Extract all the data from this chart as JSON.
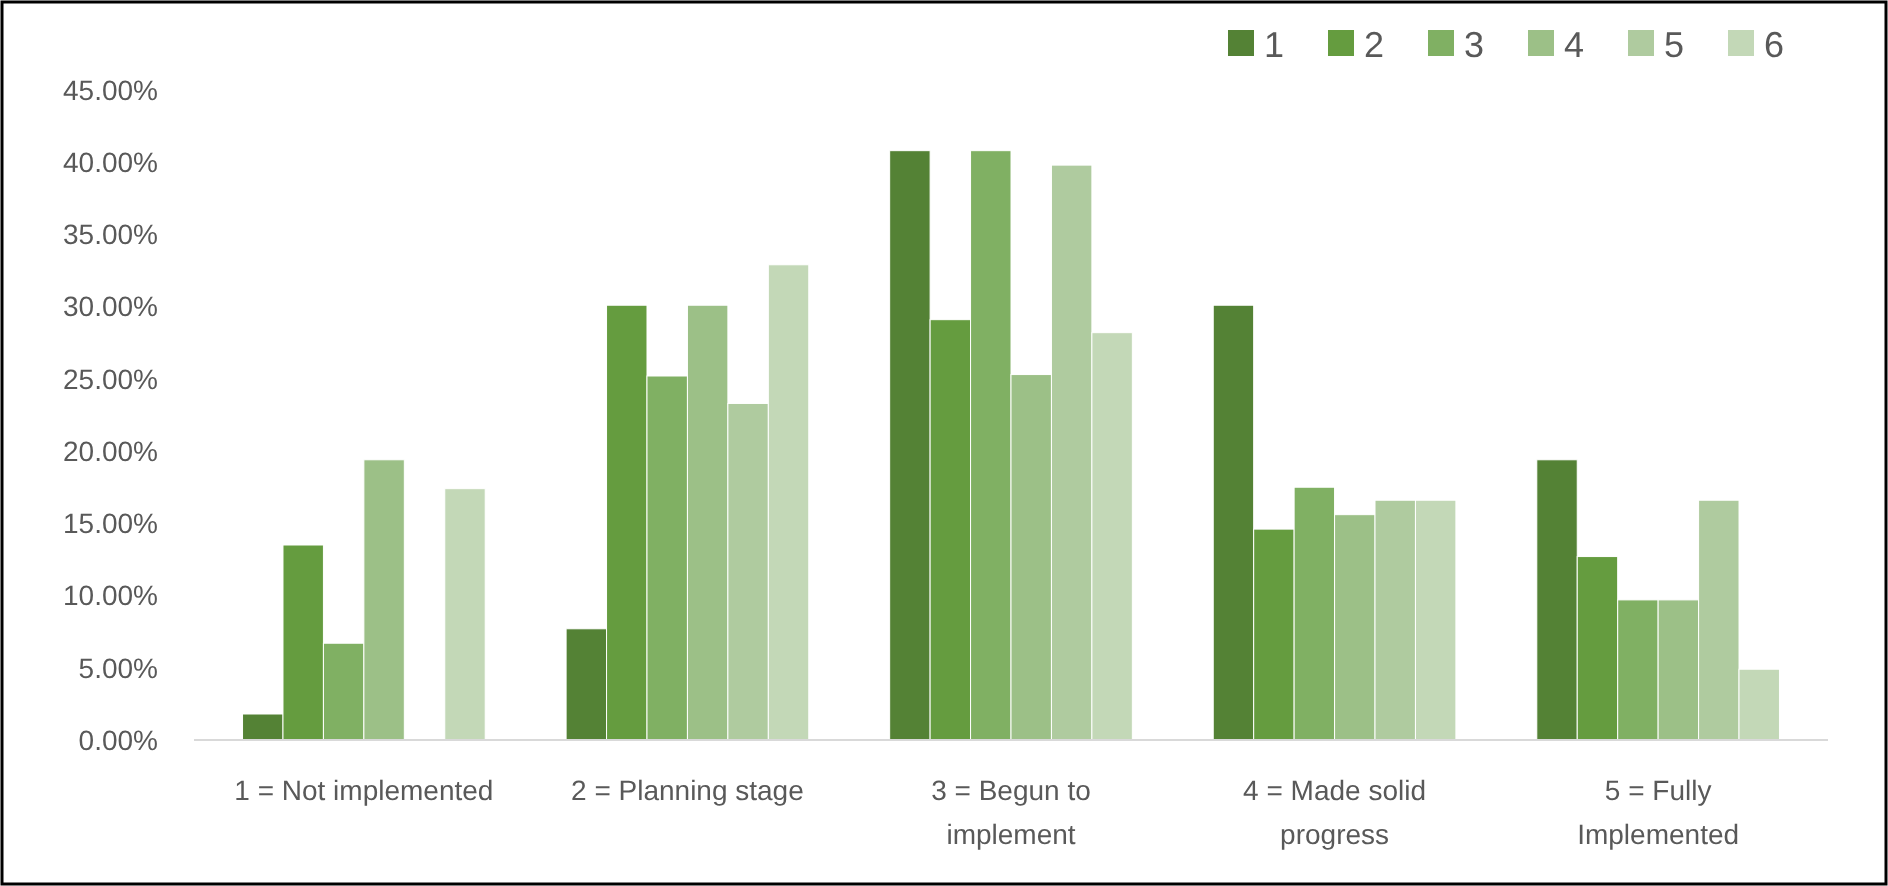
{
  "chart_data": {
    "type": "bar",
    "categories": [
      "1 = Not implemented",
      "2 = Planning stage",
      "3 = Begun to implement",
      "4 = Made solid progress",
      "5 = Fully Implemented"
    ],
    "series": [
      {
        "name": "1",
        "color": "#548235",
        "values": [
          1.8,
          7.7,
          40.8,
          30.1,
          19.4
        ]
      },
      {
        "name": "2",
        "color": "#659c3f",
        "values": [
          13.5,
          30.1,
          29.1,
          14.6,
          12.7
        ]
      },
      {
        "name": "3",
        "color": "#80b063",
        "values": [
          6.7,
          25.2,
          40.8,
          17.5,
          9.7
        ]
      },
      {
        "name": "4",
        "color": "#9cc087",
        "values": [
          19.4,
          30.1,
          25.3,
          15.6,
          9.7
        ]
      },
      {
        "name": "5",
        "color": "#afcb9f",
        "values": [
          0,
          23.3,
          39.8,
          16.6,
          16.6
        ]
      },
      {
        "name": "6",
        "color": "#c3d8b7",
        "values": [
          17.4,
          32.9,
          28.2,
          16.6,
          4.9
        ]
      }
    ],
    "ylim": [
      0,
      45
    ],
    "yticks": [
      {
        "value": 0,
        "label": "0.00%"
      },
      {
        "value": 5,
        "label": "5.00%"
      },
      {
        "value": 10,
        "label": "10.00%"
      },
      {
        "value": 15,
        "label": "15.00%"
      },
      {
        "value": 20,
        "label": "20.00%"
      },
      {
        "value": 25,
        "label": "25.00%"
      },
      {
        "value": 30,
        "label": "30.00%"
      },
      {
        "value": 35,
        "label": "35.00%"
      },
      {
        "value": 40,
        "label": "40.00%"
      },
      {
        "value": 45,
        "label": "45.00%"
      }
    ],
    "grid": false,
    "legend": "top right"
  }
}
